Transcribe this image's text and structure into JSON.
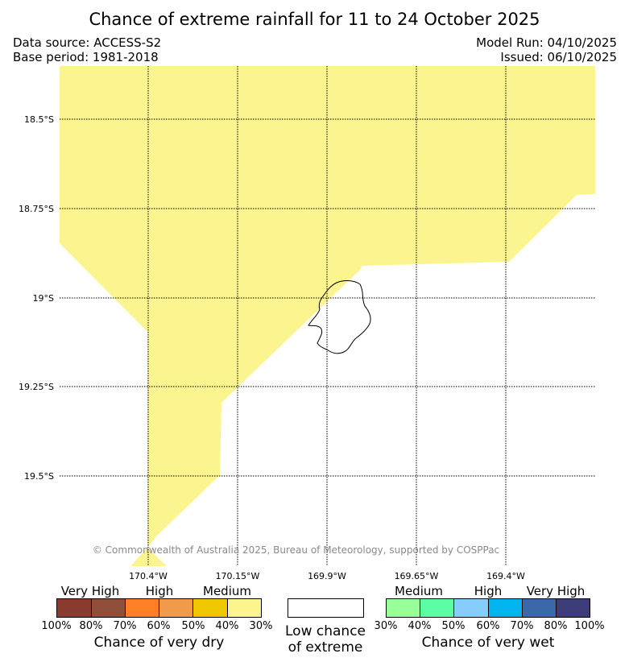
{
  "header": {
    "title": "Chance of extreme rainfall for 11 to 24 October 2025",
    "data_source": "Data source: ACCESS-S2",
    "base_period": "Base period: 1981-2018",
    "model_run": "Model Run: 04/10/2025",
    "issued": "Issued: 06/10/2025"
  },
  "map": {
    "lat_labels": [
      "18.5°S",
      "18.75°S",
      "19°S",
      "19.25°S",
      "19.5°S"
    ],
    "lon_labels": [
      "170.4°W",
      "170.15°W",
      "169.9°W",
      "169.65°W",
      "169.4°W"
    ],
    "dry_medium_color": "#fbf48f",
    "copyright": "© Commonwealth of Australia 2025, Bureau of Meteorology, supported by COSPPac"
  },
  "legend": {
    "dry": {
      "categories": [
        "Very High",
        "High",
        "Medium"
      ],
      "colors": [
        "#8b3a2f",
        "#8f4f3b",
        "#ff7f27",
        "#f09a4a",
        "#eec700",
        "#fbf48f"
      ],
      "ticks": [
        "100%",
        "80%",
        "70%",
        "60%",
        "50%",
        "40%",
        "30%"
      ],
      "caption": "Chance of very dry"
    },
    "low": {
      "color": "#ffffff",
      "caption_line1": "Low chance",
      "caption_line2": "of extreme"
    },
    "wet": {
      "categories": [
        "Medium",
        "High",
        "Very High"
      ],
      "colors": [
        "#99ff99",
        "#5cffa6",
        "#86cdfb",
        "#00b4f0",
        "#3a68a8",
        "#3c3c78"
      ],
      "ticks": [
        "30%",
        "40%",
        "50%",
        "60%",
        "70%",
        "80%",
        "100%"
      ],
      "caption": "Chance of very wet"
    }
  }
}
